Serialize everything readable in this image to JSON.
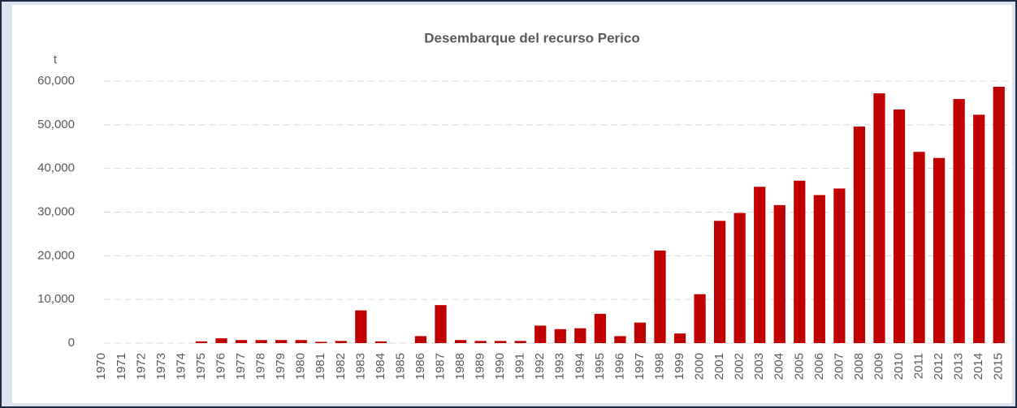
{
  "chart_data": {
    "type": "bar",
    "title": "Desembarque del recurso Perico",
    "y_label": "t",
    "categories": [
      "1970",
      "1971",
      "1972",
      "1973",
      "1974",
      "1975",
      "1976",
      "1977",
      "1978",
      "1979",
      "1980",
      "1981",
      "1982",
      "1983",
      "1984",
      "1985",
      "1986",
      "1987",
      "1988",
      "1989",
      "1990",
      "1991",
      "1992",
      "1993",
      "1994",
      "1995",
      "1996",
      "1997",
      "1998",
      "1999",
      "2000",
      "2001",
      "2002",
      "2003",
      "2004",
      "2005",
      "2006",
      "2007",
      "2008",
      "2009",
      "2010",
      "2011",
      "2012",
      "2013",
      "2014",
      "2015"
    ],
    "values": [
      0,
      0,
      0,
      0,
      0,
      400,
      1100,
      700,
      700,
      700,
      700,
      300,
      500,
      7500,
      400,
      0,
      1600,
      8700,
      700,
      500,
      500,
      500,
      4000,
      3200,
      3400,
      6700,
      1600,
      4700,
      21200,
      2200,
      11200,
      28000,
      29800,
      35800,
      31600,
      37200,
      33900,
      35400,
      49600,
      57200,
      53500,
      43800,
      42400,
      55900,
      52300,
      58700
    ],
    "color": "#c00000",
    "ylim": [
      0,
      60000
    ],
    "yticks": [
      0,
      {
        "value": 10000,
        "label": "10,000"
      },
      {
        "value": 20000,
        "label": "20,000"
      },
      {
        "value": 30000,
        "label": "30,000"
      },
      {
        "value": 40000,
        "label": "40,000"
      },
      {
        "value": 50000,
        "label": "50,000"
      },
      {
        "value": 60000,
        "label": "60,000"
      }
    ],
    "grid": true
  }
}
